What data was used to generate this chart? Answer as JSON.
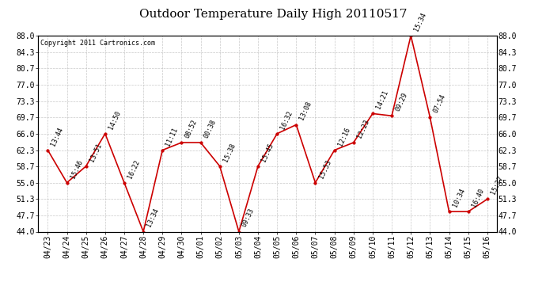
{
  "title": "Outdoor Temperature Daily High 20110517",
  "copyright": "Copyright 2011 Cartronics.com",
  "x_labels": [
    "04/23",
    "04/24",
    "04/25",
    "04/26",
    "04/27",
    "04/28",
    "04/29",
    "04/30",
    "05/01",
    "05/02",
    "05/03",
    "05/04",
    "05/05",
    "05/06",
    "05/07",
    "05/08",
    "05/09",
    "05/10",
    "05/11",
    "05/12",
    "05/13",
    "05/14",
    "05/15",
    "05/16"
  ],
  "y_values": [
    62.3,
    55.0,
    58.7,
    66.0,
    55.0,
    44.0,
    62.3,
    64.0,
    64.0,
    58.7,
    44.0,
    58.7,
    66.0,
    68.0,
    55.0,
    62.3,
    64.0,
    70.5,
    70.0,
    88.0,
    69.7,
    48.5,
    48.5,
    51.3
  ],
  "point_labels": [
    "13:44",
    "15:46",
    "13:51",
    "14:50",
    "16:22",
    "13:34",
    "11:11",
    "08:52",
    "00:38",
    "15:38",
    "09:33",
    "15:45",
    "16:32",
    "13:08",
    "15:53",
    "12:16",
    "12:23",
    "14:21",
    "09:29",
    "15:34",
    "07:54",
    "10:34",
    "16:40",
    "15:27"
  ],
  "y_ticks": [
    44.0,
    47.7,
    51.3,
    55.0,
    58.7,
    62.3,
    66.0,
    69.7,
    73.3,
    77.0,
    80.7,
    84.3,
    88.0
  ],
  "line_color": "#cc0000",
  "marker_color": "#cc0000",
  "bg_color": "#ffffff",
  "grid_color": "#bbbbbb",
  "title_fontsize": 11,
  "copyright_fontsize": 6,
  "label_fontsize": 6,
  "tick_fontsize": 7,
  "ylim_min": 44.0,
  "ylim_max": 88.0
}
